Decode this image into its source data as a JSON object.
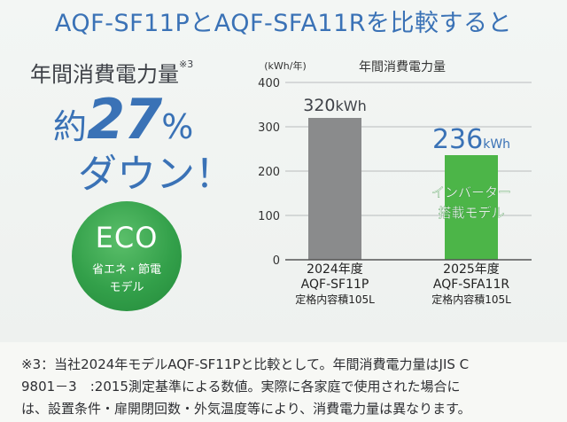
{
  "headline": "AQF-SF11PとAQF-SFA11Rを比較すると",
  "promo": {
    "title": "年間消費電力量",
    "title_note": "※3",
    "reduction_prefix": "約",
    "reduction_value": "27",
    "reduction_unit": "%",
    "reduction_suffix": "ダウン！"
  },
  "eco_badge": {
    "title": "ECO",
    "line1": "省エネ・節電",
    "line2": "モデル"
  },
  "chart_data": {
    "type": "bar",
    "title": "年間消費電力量",
    "ylabel": "(kWh/年)",
    "ylim": [
      0,
      400
    ],
    "yticks": [
      0,
      100,
      200,
      300,
      400
    ],
    "grid": true,
    "categories": [
      {
        "year": "2024年度",
        "model": "AQF-SF11P",
        "capacity": "定格内容積105L"
      },
      {
        "year": "2025年度",
        "model": "AQF-SFA11R",
        "capacity": "定格内容積105L"
      }
    ],
    "values": [
      320,
      236
    ],
    "value_labels": [
      {
        "num": "320",
        "unit": "kWh"
      },
      {
        "num": "236",
        "unit": "kWh"
      }
    ],
    "colors": [
      "#8a8b8c",
      "#4cb548"
    ],
    "bar_annotation": {
      "line1": "インバーター",
      "line2": "搭載モデル"
    }
  },
  "footnote": {
    "line1": "※3：当社2024年モデルAQF-SF11Pと比較として。年間消費電力量はJIS C",
    "line2": "9801－3　:2015測定基準による数値。実際に各家庭で使用された場合に",
    "line3": "は、設置条件・扉開閉回数・外気温度等により、消費電力量は異なります。"
  }
}
